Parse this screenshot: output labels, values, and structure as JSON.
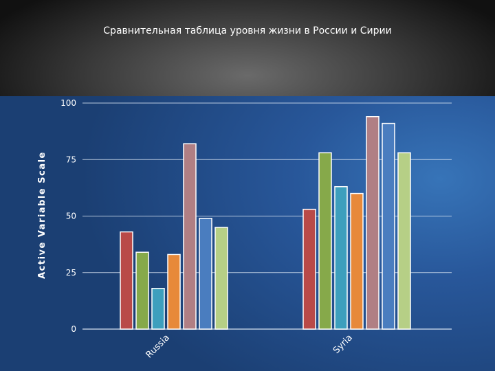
{
  "chart_data": {
    "type": "bar",
    "title": "Сравнительная таблица уровня жизни в России и Сирии",
    "ylabel": "Active Variable Scale",
    "xlabel": "",
    "categories": [
      "Russia",
      "Syria"
    ],
    "ylim": [
      0,
      100
    ],
    "yticks": [
      0,
      25,
      50,
      75,
      100
    ],
    "grid": true,
    "series": [
      {
        "color": "#b94a48",
        "values": [
          43,
          53
        ]
      },
      {
        "color": "#86a94a",
        "values": [
          34,
          78
        ]
      },
      {
        "color": "#3d9fbd",
        "values": [
          18,
          63
        ]
      },
      {
        "color": "#e7893a",
        "values": [
          33,
          60
        ]
      },
      {
        "color": "#b07f84",
        "values": [
          82,
          94
        ]
      },
      {
        "color": "#4a7dbf",
        "values": [
          49,
          91
        ]
      },
      {
        "color": "#b6cf86",
        "values": [
          45,
          78
        ]
      }
    ]
  }
}
